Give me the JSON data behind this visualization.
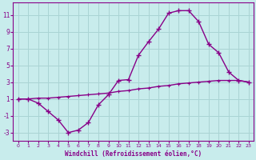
{
  "xlabel": "Windchill (Refroidissement éolien,°C)",
  "bg_color": "#c8ecec",
  "grid_color": "#aad4d4",
  "line_color": "#880088",
  "xlim": [
    -0.5,
    23.5
  ],
  "ylim": [
    -4,
    12.5
  ],
  "xticks": [
    0,
    1,
    2,
    3,
    4,
    5,
    6,
    7,
    8,
    9,
    10,
    11,
    12,
    13,
    14,
    15,
    16,
    17,
    18,
    19,
    20,
    21,
    22,
    23
  ],
  "yticks": [
    -3,
    -1,
    1,
    3,
    5,
    7,
    9,
    11
  ],
  "curve_x": [
    0,
    1,
    2,
    3,
    4,
    5,
    6,
    7,
    8,
    9,
    10,
    11,
    12,
    13,
    14,
    15,
    16,
    17,
    18,
    19,
    20,
    21,
    22,
    23
  ],
  "curve_y": [
    1.0,
    1.0,
    0.5,
    -0.5,
    -1.5,
    -3.0,
    -2.7,
    -1.8,
    0.3,
    1.5,
    3.2,
    3.3,
    6.2,
    7.8,
    9.3,
    11.2,
    11.5,
    11.5,
    10.2,
    7.5,
    6.5,
    4.2,
    3.2,
    3.0
  ],
  "diag_x": [
    0,
    1,
    2,
    3,
    4,
    5,
    6,
    7,
    8,
    9,
    10,
    11,
    12,
    13,
    14,
    15,
    16,
    17,
    18,
    19,
    20,
    21,
    22,
    23
  ],
  "diag_y": [
    1.0,
    1.0,
    1.1,
    1.1,
    1.2,
    1.3,
    1.4,
    1.5,
    1.6,
    1.7,
    1.9,
    2.0,
    2.2,
    2.3,
    2.5,
    2.6,
    2.8,
    2.9,
    3.0,
    3.1,
    3.2,
    3.2,
    3.2,
    3.0
  ],
  "xtick_fontsize": 4.5,
  "ytick_fontsize": 5.5,
  "xlabel_fontsize": 5.5
}
